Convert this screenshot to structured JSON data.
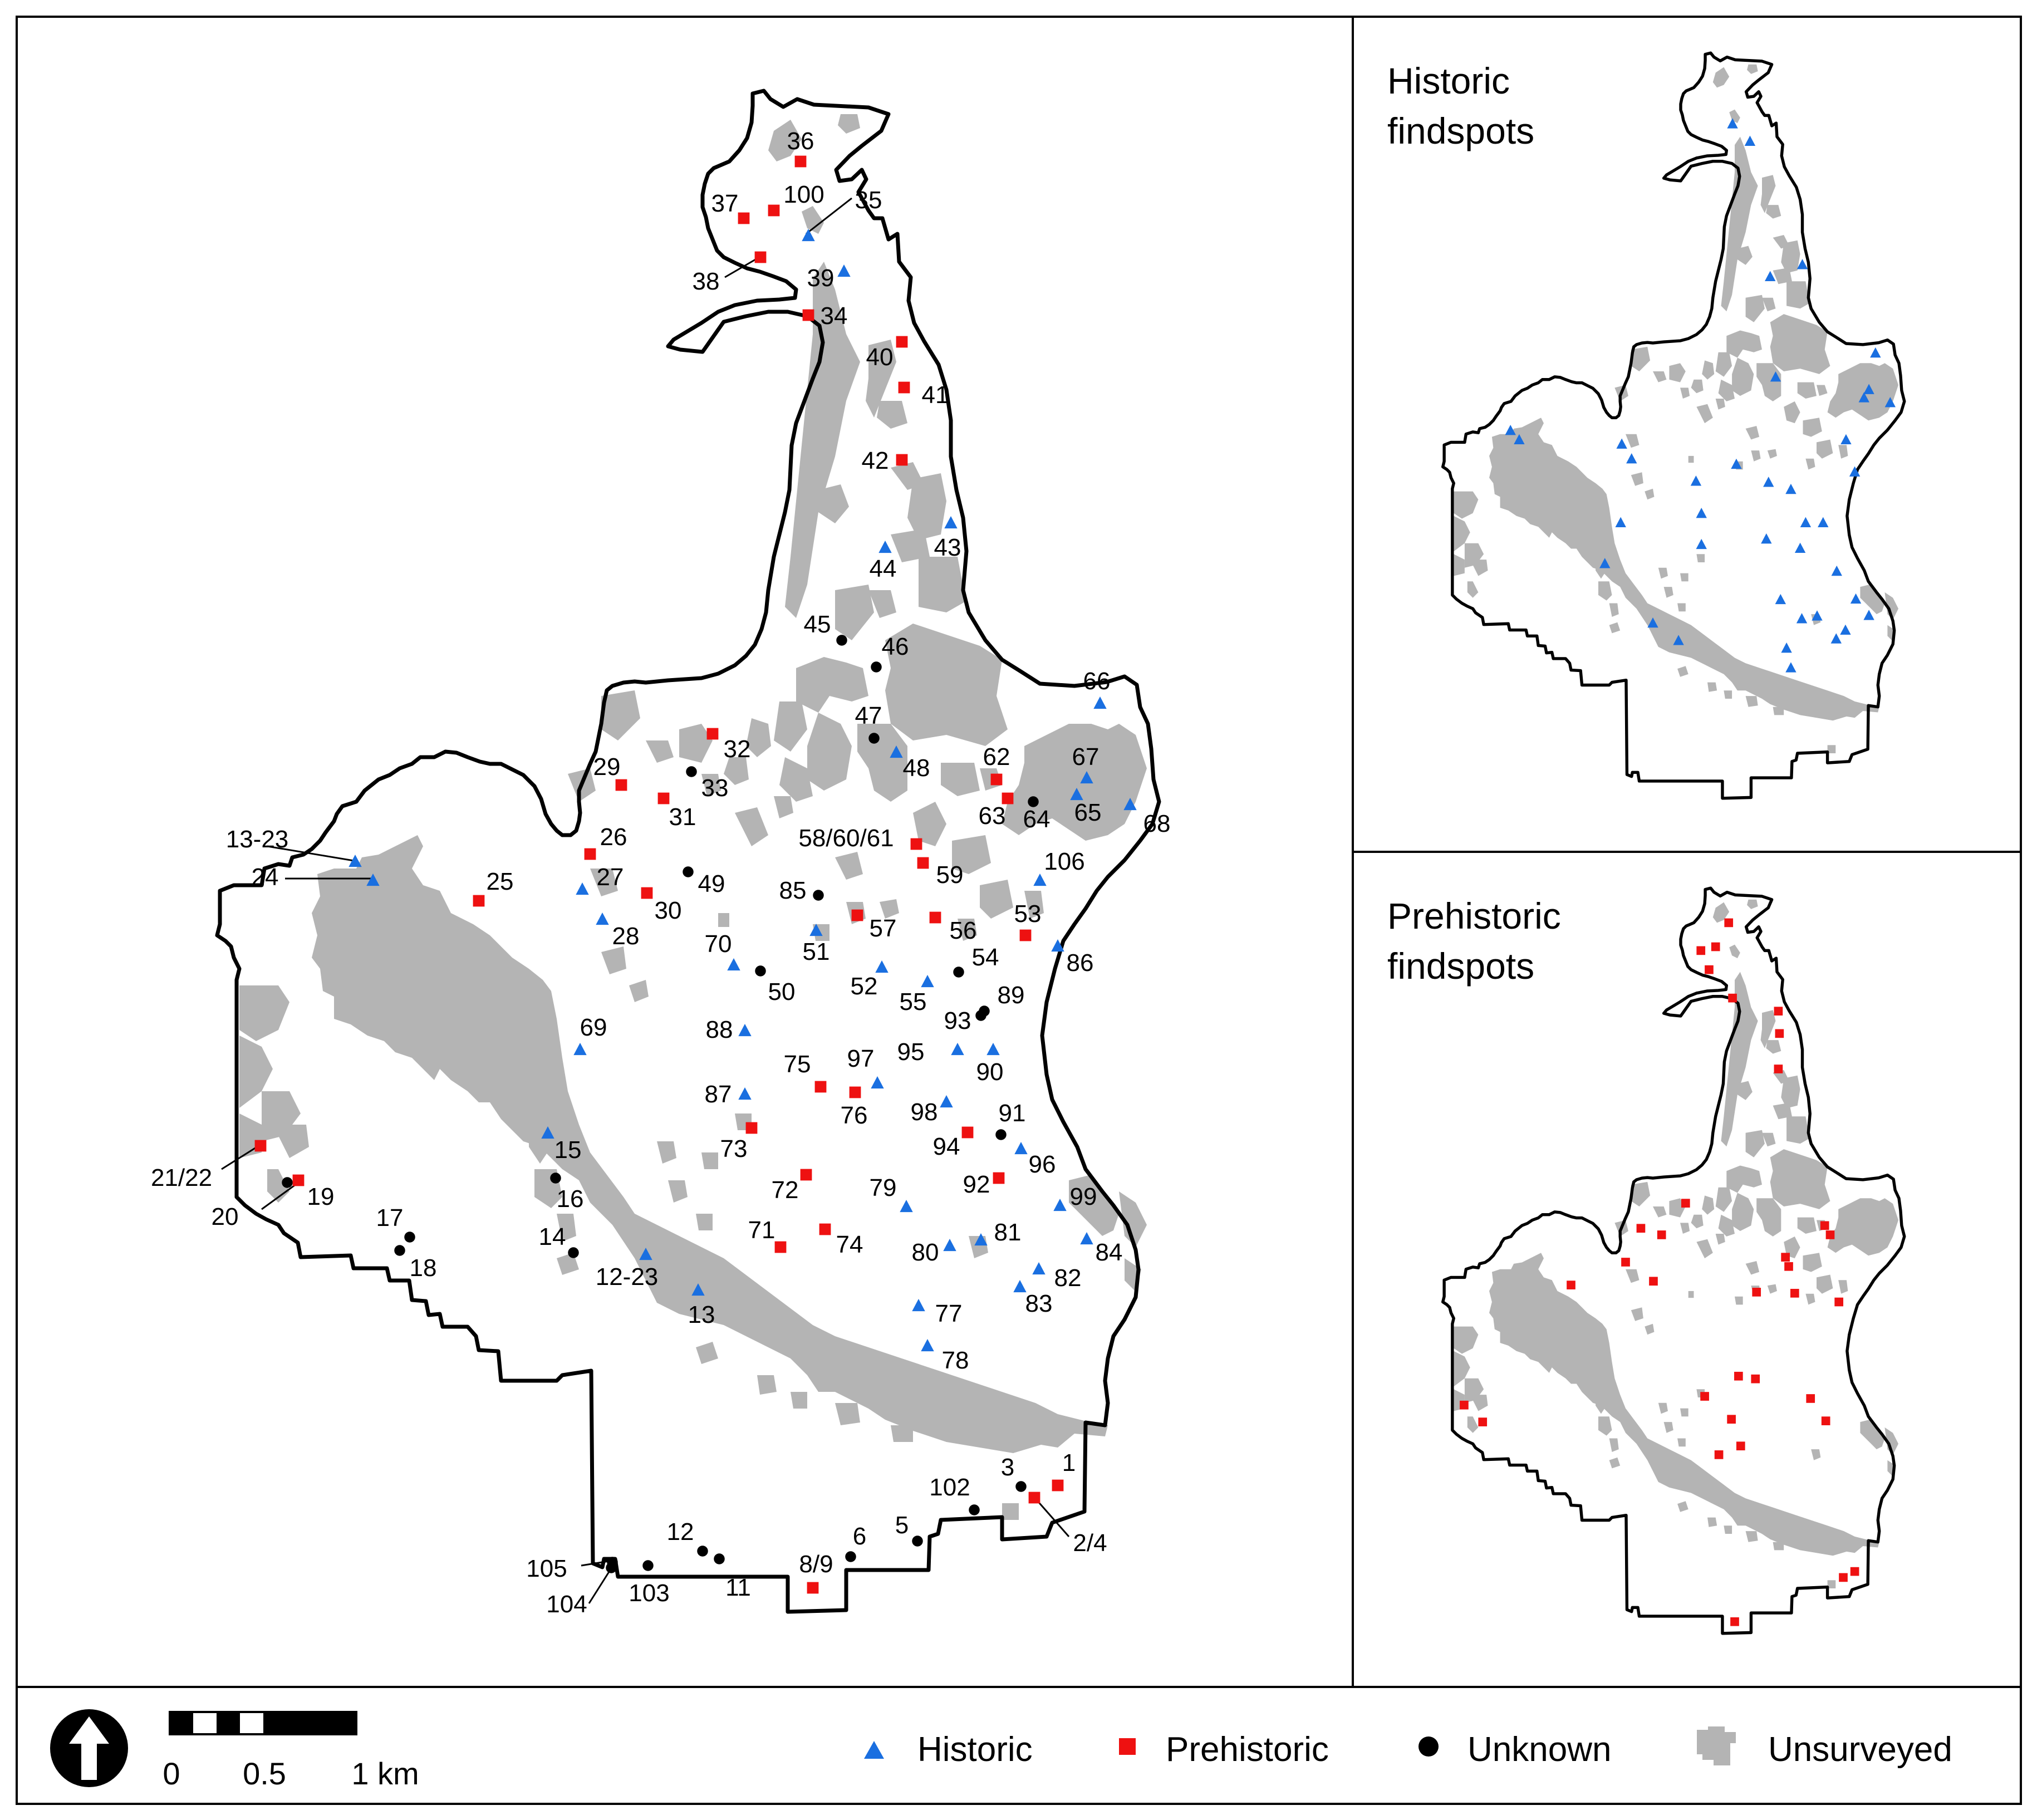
{
  "colors": {
    "historic": "#1a6fe0",
    "prehistoric": "#ee1111",
    "unknown": "#000000",
    "unsurveyed": "#b4b4b4",
    "boundary": "#000000"
  },
  "panels": {
    "historic_title_1": "Historic",
    "historic_title_2": "findspots",
    "prehistoric_title_1": "Prehistoric",
    "prehistoric_title_2": "findspots"
  },
  "legend": {
    "historic": "Historic",
    "prehistoric": "Prehistoric",
    "unknown": "Unknown",
    "unsurveyed": "Unsurveyed",
    "north_arrow_icon": "north-arrow-icon"
  },
  "scale_bar": {
    "tick_0": "0",
    "tick_mid": "0.5",
    "tick_end": "1 km"
  },
  "findspots": [
    {
      "id": "36",
      "type": "prehistoric"
    },
    {
      "id": "37",
      "type": "prehistoric"
    },
    {
      "id": "100",
      "type": "prehistoric"
    },
    {
      "id": "35",
      "type": "historic"
    },
    {
      "id": "38",
      "type": "prehistoric"
    },
    {
      "id": "39",
      "type": "historic"
    },
    {
      "id": "34",
      "type": "prehistoric"
    },
    {
      "id": "40",
      "type": "prehistoric"
    },
    {
      "id": "41",
      "type": "prehistoric"
    },
    {
      "id": "42",
      "type": "prehistoric"
    },
    {
      "id": "43",
      "type": "historic"
    },
    {
      "id": "44",
      "type": "historic"
    },
    {
      "id": "45",
      "type": "unknown"
    },
    {
      "id": "46",
      "type": "unknown"
    },
    {
      "id": "47",
      "type": "unknown"
    },
    {
      "id": "48",
      "type": "historic"
    },
    {
      "id": "66",
      "type": "historic"
    },
    {
      "id": "32",
      "type": "prehistoric"
    },
    {
      "id": "29",
      "type": "prehistoric"
    },
    {
      "id": "33",
      "type": "unknown"
    },
    {
      "id": "31",
      "type": "prehistoric"
    },
    {
      "id": "62",
      "type": "prehistoric"
    },
    {
      "id": "67",
      "type": "historic"
    },
    {
      "id": "63",
      "type": "prehistoric"
    },
    {
      "id": "64",
      "type": "unknown"
    },
    {
      "id": "65",
      "type": "historic"
    },
    {
      "id": "68",
      "type": "historic"
    },
    {
      "id": "58/60/61",
      "type": "prehistoric"
    },
    {
      "id": "59",
      "type": "prehistoric"
    },
    {
      "id": "26",
      "type": "prehistoric"
    },
    {
      "id": "13-23",
      "type": "historic"
    },
    {
      "id": "24",
      "type": "historic"
    },
    {
      "id": "25",
      "type": "prehistoric"
    },
    {
      "id": "27",
      "type": "historic"
    },
    {
      "id": "49",
      "type": "unknown"
    },
    {
      "id": "30",
      "type": "prehistoric"
    },
    {
      "id": "106",
      "type": "historic"
    },
    {
      "id": "85",
      "type": "unknown"
    },
    {
      "id": "28",
      "type": "historic"
    },
    {
      "id": "57",
      "type": "prehistoric"
    },
    {
      "id": "56",
      "type": "prehistoric"
    },
    {
      "id": "53",
      "type": "prehistoric"
    },
    {
      "id": "51",
      "type": "historic"
    },
    {
      "id": "70",
      "type": "historic"
    },
    {
      "id": "86",
      "type": "historic"
    },
    {
      "id": "54",
      "type": "unknown"
    },
    {
      "id": "50",
      "type": "unknown"
    },
    {
      "id": "52",
      "type": "historic"
    },
    {
      "id": "55",
      "type": "historic"
    },
    {
      "id": "89",
      "type": "unknown"
    },
    {
      "id": "93",
      "type": "unknown"
    },
    {
      "id": "88",
      "type": "historic"
    },
    {
      "id": "69",
      "type": "historic"
    },
    {
      "id": "90",
      "type": "historic"
    },
    {
      "id": "95",
      "type": "historic"
    },
    {
      "id": "97",
      "type": "historic"
    },
    {
      "id": "75",
      "type": "prehistoric"
    },
    {
      "id": "87",
      "type": "historic"
    },
    {
      "id": "76",
      "type": "prehistoric"
    },
    {
      "id": "98",
      "type": "historic"
    },
    {
      "id": "91",
      "type": "unknown"
    },
    {
      "id": "73",
      "type": "prehistoric"
    },
    {
      "id": "94",
      "type": "prehistoric"
    },
    {
      "id": "15",
      "type": "historic"
    },
    {
      "id": "96",
      "type": "historic"
    },
    {
      "id": "21/22",
      "type": "prehistoric"
    },
    {
      "id": "20",
      "type": "unknown"
    },
    {
      "id": "19",
      "type": "prehistoric"
    },
    {
      "id": "16",
      "type": "unknown"
    },
    {
      "id": "72",
      "type": "prehistoric"
    },
    {
      "id": "92",
      "type": "prehistoric"
    },
    {
      "id": "79",
      "type": "historic"
    },
    {
      "id": "99",
      "type": "historic"
    },
    {
      "id": "17",
      "type": "unknown"
    },
    {
      "id": "71",
      "type": "prehistoric"
    },
    {
      "id": "74",
      "type": "prehistoric"
    },
    {
      "id": "14",
      "type": "unknown"
    },
    {
      "id": "81",
      "type": "historic"
    },
    {
      "id": "84",
      "type": "historic"
    },
    {
      "id": "80",
      "type": "historic"
    },
    {
      "id": "18",
      "type": "unknown"
    },
    {
      "id": "12-23",
      "type": "historic"
    },
    {
      "id": "82",
      "type": "historic"
    },
    {
      "id": "13",
      "type": "historic"
    },
    {
      "id": "83",
      "type": "historic"
    },
    {
      "id": "77",
      "type": "historic"
    },
    {
      "id": "78",
      "type": "historic"
    },
    {
      "id": "3",
      "type": "unknown"
    },
    {
      "id": "1",
      "type": "prehistoric"
    },
    {
      "id": "102",
      "type": "unknown"
    },
    {
      "id": "2/4",
      "type": "prehistoric"
    },
    {
      "id": "5",
      "type": "unknown"
    },
    {
      "id": "12",
      "type": "unknown"
    },
    {
      "id": "6",
      "type": "unknown"
    },
    {
      "id": "8/9",
      "type": "prehistoric"
    },
    {
      "id": "105",
      "type": "unknown"
    },
    {
      "id": "103",
      "type": "unknown"
    },
    {
      "id": "11",
      "type": "unknown"
    },
    {
      "id": "104",
      "type": "unknown"
    }
  ]
}
